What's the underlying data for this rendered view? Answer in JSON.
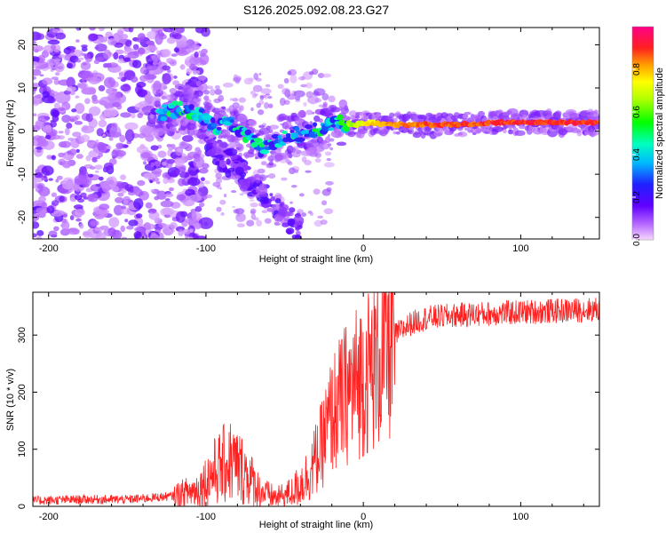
{
  "title": "S126.2025.092.08.23.G27",
  "chart_data": [
    {
      "type": "heatmap",
      "xlabel": "Height of straight line (km)",
      "ylabel": "Frequency (Hz)",
      "xlim": [
        -210,
        150
      ],
      "ylim": [
        -25,
        24
      ],
      "xticks": [
        -200,
        -100,
        0,
        100
      ],
      "yticks": [
        -20,
        -10,
        0,
        10,
        20
      ],
      "colorbar": {
        "label": "Normalized spectral amplitude",
        "range": [
          0,
          1
        ],
        "ticks": [
          "0.0",
          "0.2",
          "0.4",
          "0.6",
          "0.8"
        ],
        "tick_values": [
          0,
          0.2,
          0.4,
          0.6,
          0.8
        ]
      },
      "ridge": [
        {
          "x": -125,
          "y": 4.5,
          "a": 0.55
        },
        {
          "x": -115,
          "y": 5.5,
          "a": 0.6
        },
        {
          "x": -105,
          "y": 4,
          "a": 0.55
        },
        {
          "x": -95,
          "y": 1,
          "a": 0.5
        },
        {
          "x": -85,
          "y": 2,
          "a": 0.5
        },
        {
          "x": -75,
          "y": -1,
          "a": 0.55
        },
        {
          "x": -65,
          "y": -4,
          "a": 0.55
        },
        {
          "x": -55,
          "y": -2,
          "a": 0.5
        },
        {
          "x": -45,
          "y": -1,
          "a": 0.5
        },
        {
          "x": -35,
          "y": 0,
          "a": 0.55
        },
        {
          "x": -25,
          "y": 1,
          "a": 0.6
        },
        {
          "x": -15,
          "y": 2,
          "a": 0.65
        },
        {
          "x": -5,
          "y": 1.5,
          "a": 0.7
        },
        {
          "x": 5,
          "y": 2,
          "a": 0.8
        },
        {
          "x": 15,
          "y": 1.5,
          "a": 0.85
        },
        {
          "x": 30,
          "y": 1.5,
          "a": 0.9
        },
        {
          "x": 60,
          "y": 1.5,
          "a": 0.92
        },
        {
          "x": 90,
          "y": 2,
          "a": 0.94
        },
        {
          "x": 120,
          "y": 2,
          "a": 0.95
        },
        {
          "x": 150,
          "y": 2,
          "a": 0.95
        }
      ]
    },
    {
      "type": "line",
      "xlabel": "Height of straight line (km)",
      "ylabel": "SNR (10 * v/v)",
      "xlim": [
        -210,
        150
      ],
      "ylim": [
        0,
        375
      ],
      "xticks": [
        -200,
        -100,
        0,
        100
      ],
      "yticks": [
        0,
        100,
        200,
        300
      ],
      "color": "#ff2020",
      "trend": {
        "x": [
          -210,
          -180,
          -150,
          -120,
          -105,
          -95,
          -85,
          -75,
          -65,
          -55,
          -45,
          -35,
          -28,
          -20,
          -10,
          0,
          10,
          20,
          30,
          40,
          60,
          100,
          150
        ],
        "y": [
          10,
          12,
          12,
          18,
          30,
          60,
          80,
          60,
          25,
          15,
          25,
          55,
          95,
          160,
          200,
          230,
          255,
          300,
          320,
          330,
          335,
          340,
          345
        ]
      }
    }
  ]
}
